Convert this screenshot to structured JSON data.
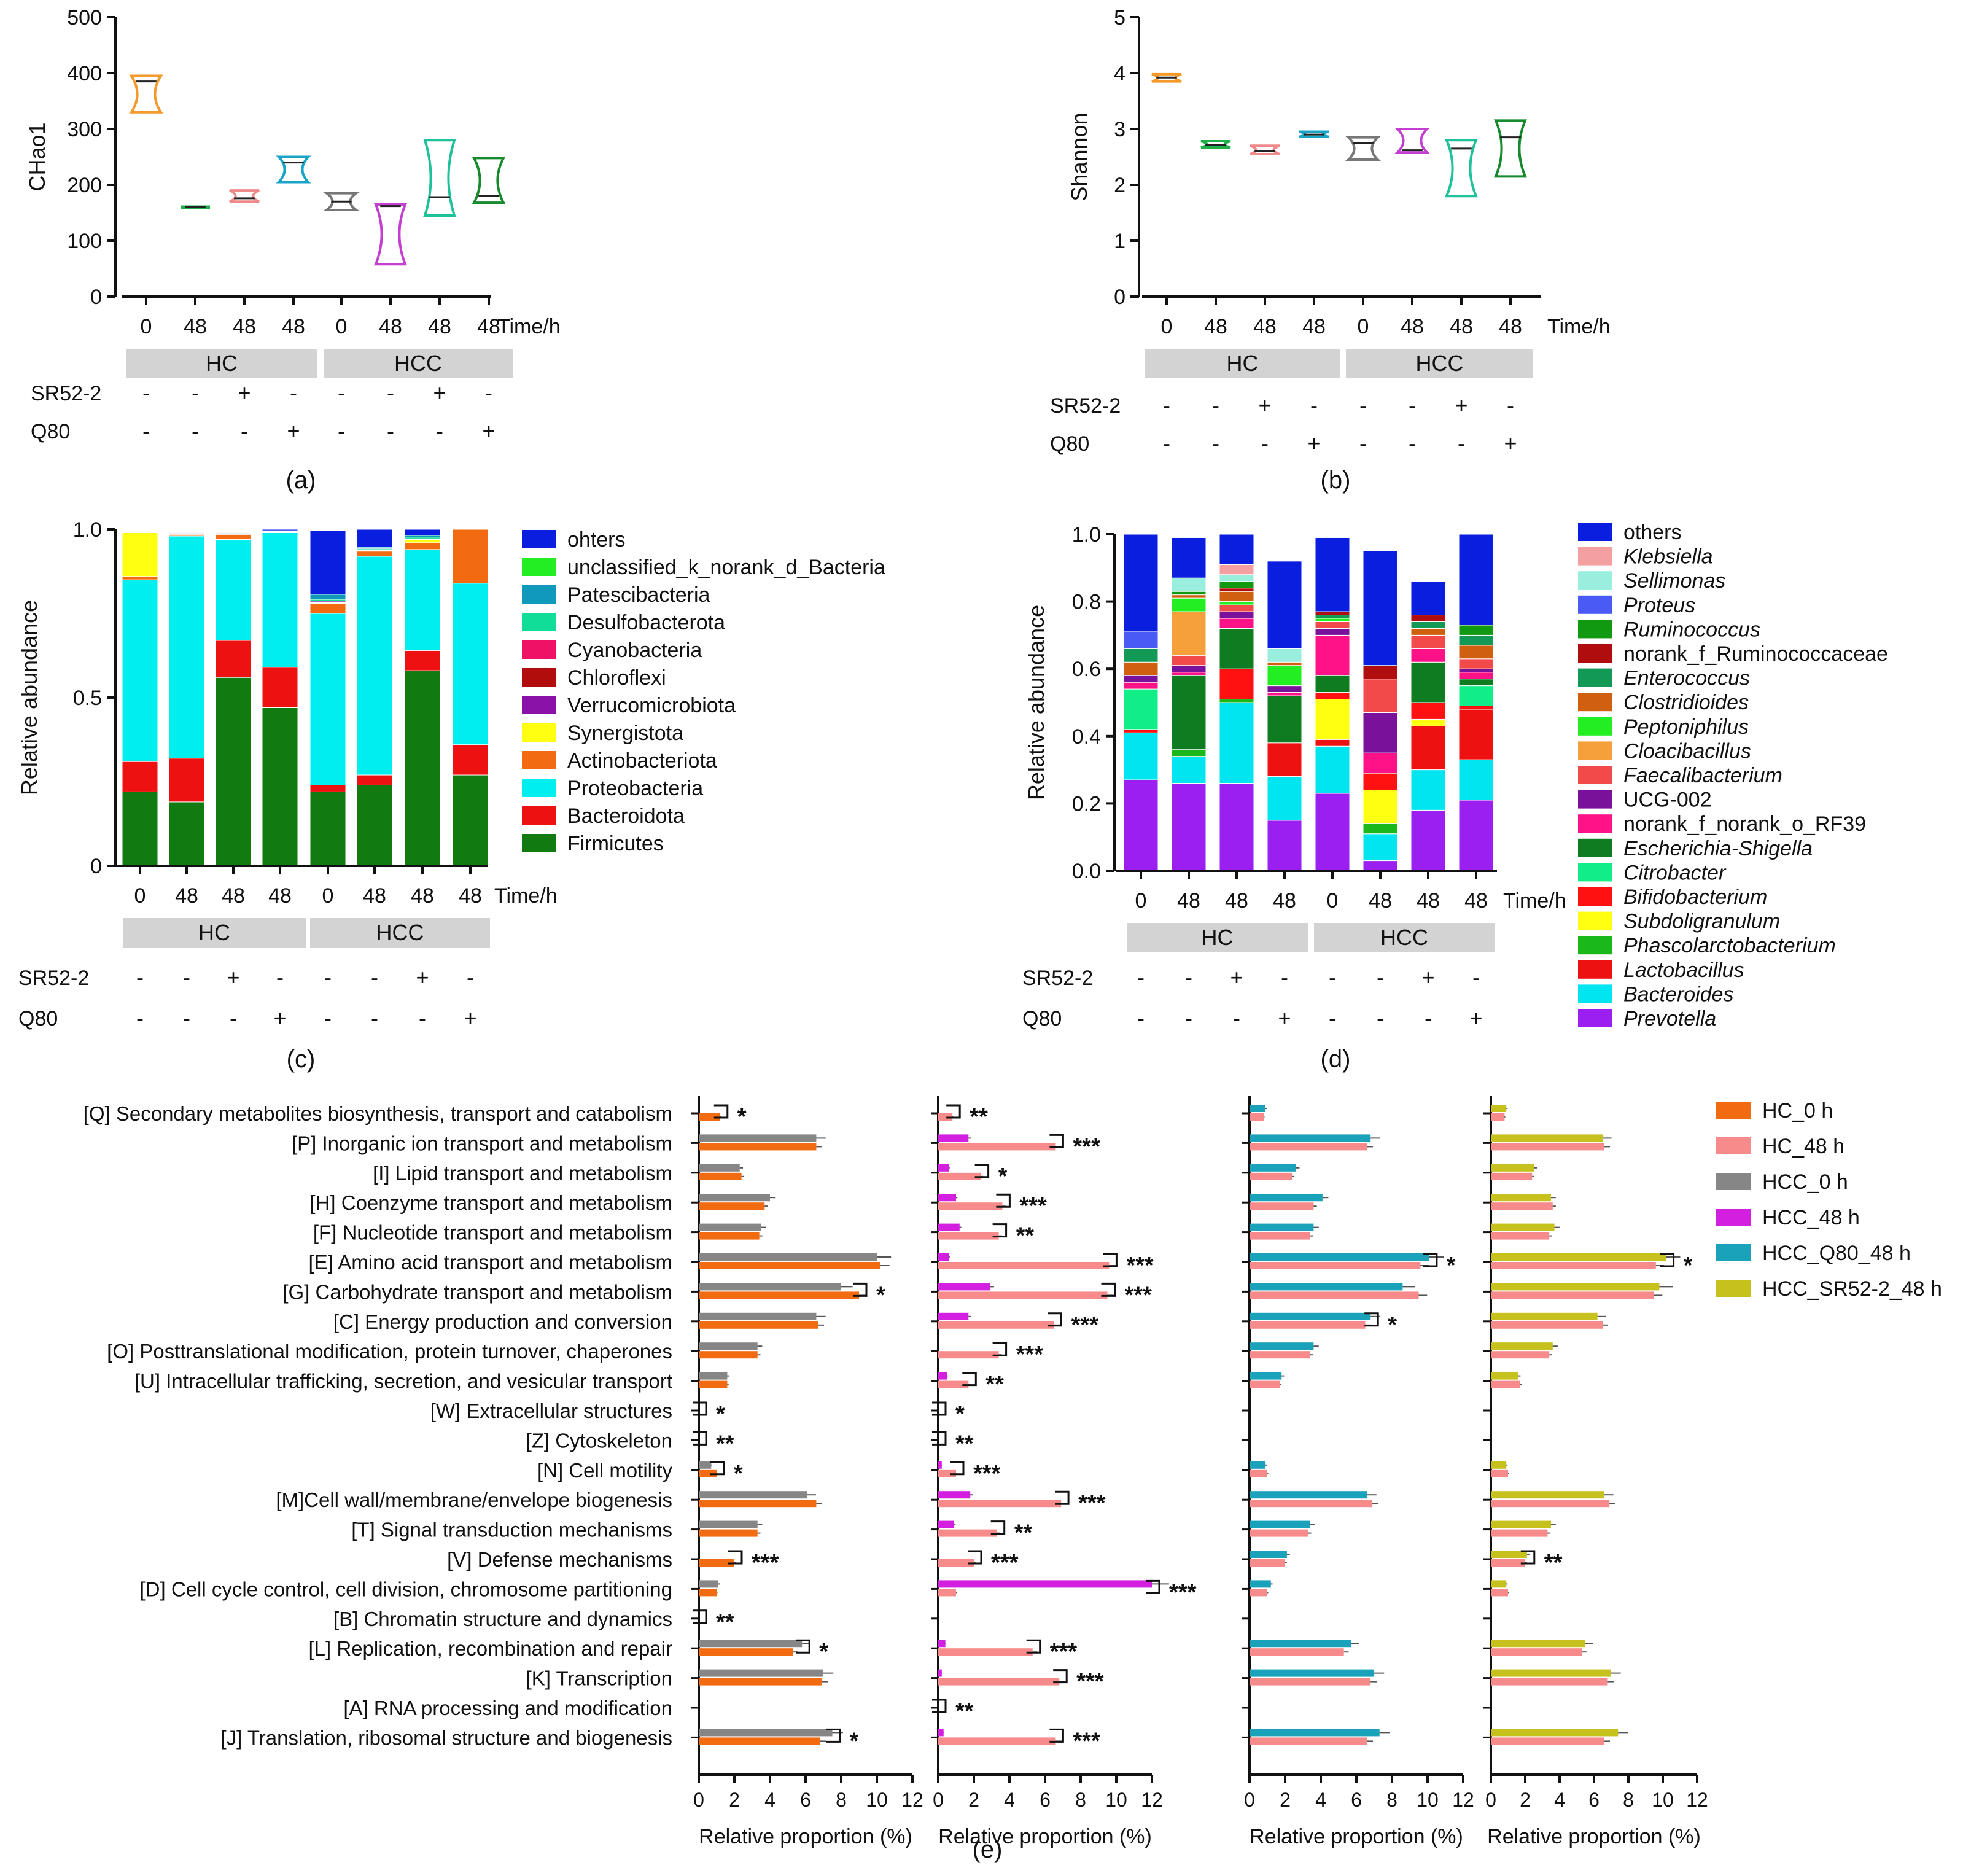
{
  "figure": {
    "time_unit": "Time/h",
    "group_labels": [
      "HC",
      "HCC"
    ],
    "row_labels": [
      "SR52-2",
      "Q80"
    ],
    "times": [
      "0",
      "48",
      "48",
      "48",
      "0",
      "48",
      "48",
      "48"
    ],
    "sr52_marks": [
      "-",
      "-",
      "+",
      "-",
      "-",
      "-",
      "+",
      "-"
    ],
    "q80_marks": [
      "-",
      "-",
      "-",
      "+",
      "-",
      "-",
      "-",
      "+"
    ]
  },
  "panel_labels": [
    "(a)",
    "(b)",
    "(c)",
    "(d)",
    "(e)"
  ],
  "chart_data": [
    {
      "type": "violin",
      "panel": "(a)",
      "ylabel": "CHao1",
      "ylim": [
        0,
        500
      ],
      "yticks": [
        0,
        100,
        200,
        300,
        400,
        500
      ],
      "colors": [
        "#f39a2a",
        "#1fb04a",
        "#f08a8a",
        "#19a4c8",
        "#777777",
        "#c23fd0",
        "#1fc19a",
        "#168a2c"
      ],
      "groups": [
        {
          "min": 330,
          "max": 395,
          "median": 385
        },
        {
          "min": 159,
          "max": 161,
          "median": 160
        },
        {
          "min": 170,
          "max": 190,
          "median": 176
        },
        {
          "min": 205,
          "max": 250,
          "median": 240
        },
        {
          "min": 155,
          "max": 185,
          "median": 170
        },
        {
          "min": 58,
          "max": 165,
          "median": 162
        },
        {
          "min": 145,
          "max": 280,
          "median": 178
        },
        {
          "min": 168,
          "max": 248,
          "median": 180
        }
      ]
    },
    {
      "type": "violin",
      "panel": "(b)",
      "ylabel": "Shannon",
      "ylim": [
        0,
        5
      ],
      "yticks": [
        0,
        1,
        2,
        3,
        4,
        5
      ],
      "colors": [
        "#f39a2a",
        "#1fb04a",
        "#f08a8a",
        "#19a4c8",
        "#777777",
        "#c23fd0",
        "#1fc19a",
        "#168a2c"
      ],
      "groups": [
        {
          "min": 3.85,
          "max": 3.98,
          "median": 3.92
        },
        {
          "min": 2.67,
          "max": 2.78,
          "median": 2.72
        },
        {
          "min": 2.55,
          "max": 2.7,
          "median": 2.6
        },
        {
          "min": 2.86,
          "max": 2.95,
          "median": 2.9
        },
        {
          "min": 2.45,
          "max": 2.85,
          "median": 2.75
        },
        {
          "min": 2.58,
          "max": 3.0,
          "median": 2.62
        },
        {
          "min": 1.8,
          "max": 2.8,
          "median": 2.65
        },
        {
          "min": 2.15,
          "max": 3.15,
          "median": 2.85
        }
      ]
    },
    {
      "type": "stacked-bar",
      "panel": "(c)",
      "ylabel": "Relative abundance",
      "ylim": [
        0,
        1
      ],
      "yticks": [
        "0",
        "0.5",
        "1.0"
      ],
      "ytick_values": [
        0,
        0.5,
        1.0
      ],
      "layers": [
        {
          "name": "Firmicutes",
          "color": "#117a11",
          "values": [
            0.22,
            0.19,
            0.56,
            0.47,
            0.22,
            0.24,
            0.58,
            0.27
          ]
        },
        {
          "name": "Bacteroidota",
          "color": "#ee1111",
          "values": [
            0.09,
            0.13,
            0.11,
            0.12,
            0.02,
            0.03,
            0.06,
            0.09
          ]
        },
        {
          "name": "Proteobacteria",
          "color": "#00eeee",
          "values": [
            0.54,
            0.66,
            0.3,
            0.4,
            0.51,
            0.65,
            0.3,
            0.48
          ]
        },
        {
          "name": "Actinobacteriota",
          "color": "#f26b10",
          "values": [
            0.01,
            0.005,
            0.015,
            0.002,
            0.03,
            0.015,
            0.02,
            0.16
          ]
        },
        {
          "name": "Synergistota",
          "color": "#ffff11",
          "values": [
            0.13,
            0.003,
            0.001,
            0.001,
            0.002,
            0.002,
            0.01,
            0.0
          ]
        },
        {
          "name": "Verrucomicrobiota",
          "color": "#8b12a8",
          "values": [
            0.002,
            0.0,
            0.0,
            0.0,
            0.005,
            0.0,
            0.002,
            0.0
          ]
        },
        {
          "name": "Chloroflexi",
          "color": "#b20d0d",
          "values": [
            0.0,
            0.0,
            0.0,
            0.0,
            0.0,
            0.0,
            0.0,
            0.0
          ]
        },
        {
          "name": "Cyanobacteria",
          "color": "#ee1166",
          "values": [
            0.0,
            0.0,
            0.0,
            0.0,
            0.0,
            0.0,
            0.0,
            0.0
          ]
        },
        {
          "name": "Desulfobacterota",
          "color": "#11dd99",
          "values": [
            0.001,
            0.0,
            0.002,
            0.001,
            0.005,
            0.005,
            0.005,
            0.0
          ]
        },
        {
          "name": "Patescibacteria",
          "color": "#1199bb",
          "values": [
            0.0,
            0.0,
            0.0,
            0.002,
            0.015,
            0.005,
            0.005,
            0.0
          ]
        },
        {
          "name": "unclassified_k_norank_d_Bacteria",
          "color": "#22ee22",
          "values": [
            0.001,
            0.0,
            0.0,
            0.0,
            0.0,
            0.0,
            0.0,
            0.0
          ]
        },
        {
          "name": "ohters",
          "color": "#0a1ee0",
          "values": [
            0.003,
            0.002,
            0.002,
            0.005,
            0.19,
            0.055,
            0.02,
            0.0
          ]
        }
      ]
    },
    {
      "type": "stacked-bar",
      "panel": "(d)",
      "ylabel": "Relative abundance",
      "ylim": [
        0,
        1
      ],
      "yticks": [
        "0.0",
        "0.2",
        "0.4",
        "0.6",
        "0.8",
        "1.0"
      ],
      "ytick_values": [
        0,
        0.2,
        0.4,
        0.6,
        0.8,
        1.0
      ],
      "layers": [
        {
          "name": "Prevotella",
          "color": "#9b1ff0",
          "italic": true,
          "values": [
            0.27,
            0.26,
            0.26,
            0.15,
            0.23,
            0.03,
            0.18,
            0.21
          ]
        },
        {
          "name": "Bacteroides",
          "color": "#00e5f0",
          "italic": true,
          "values": [
            0.14,
            0.08,
            0.24,
            0.13,
            0.14,
            0.08,
            0.12,
            0.12
          ]
        },
        {
          "name": "Lactobacillus",
          "color": "#ee1111",
          "italic": true,
          "values": [
            0.0,
            0.0,
            0.0,
            0.1,
            0.02,
            0.0,
            0.13,
            0.15
          ]
        },
        {
          "name": "Phascolarctobacterium",
          "color": "#1ab81a",
          "italic": true,
          "values": [
            0.0,
            0.02,
            0.01,
            0.0,
            0.0,
            0.03,
            0.0,
            0.0
          ]
        },
        {
          "name": "Subdoligranulum",
          "color": "#ffff11",
          "italic": true,
          "values": [
            0.0,
            0.0,
            0.0,
            0.0,
            0.12,
            0.1,
            0.02,
            0.0
          ]
        },
        {
          "name": "Bifidobacterium",
          "color": "#ff1111",
          "italic": true,
          "values": [
            0.01,
            0.0,
            0.09,
            0.0,
            0.02,
            0.05,
            0.05,
            0.01
          ]
        },
        {
          "name": "Citrobacter",
          "color": "#11ee88",
          "italic": true,
          "values": [
            0.12,
            0.0,
            0.0,
            0.0,
            0.0,
            0.0,
            0.0,
            0.06
          ]
        },
        {
          "name": "Escherichia-Shigella",
          "color": "#107c22",
          "italic": true,
          "values": [
            0.0,
            0.22,
            0.12,
            0.14,
            0.05,
            0.0,
            0.12,
            0.02
          ]
        },
        {
          "name": "norank_f_norank_o_RF39",
          "color": "#ff1288",
          "values": [
            0.02,
            0.01,
            0.03,
            0.01,
            0.12,
            0.06,
            0.04,
            0.02
          ]
        },
        {
          "name": "UCG-002",
          "color": "#7a119a",
          "values": [
            0.02,
            0.02,
            0.02,
            0.02,
            0.02,
            0.12,
            0.0,
            0.01
          ]
        },
        {
          "name": "Faecalibacterium",
          "color": "#f24a4a",
          "italic": true,
          "values": [
            0.0,
            0.03,
            0.02,
            0.0,
            0.02,
            0.1,
            0.04,
            0.03
          ]
        },
        {
          "name": "Cloacibacillus",
          "color": "#f5a03a",
          "italic": true,
          "values": [
            0.0,
            0.13,
            0.0,
            0.0,
            0.0,
            0.0,
            0.0,
            0.0
          ]
        },
        {
          "name": "Peptoniphilus",
          "color": "#22ee22",
          "italic": true,
          "values": [
            0.0,
            0.04,
            0.01,
            0.06,
            0.01,
            0.0,
            0.0,
            0.0
          ]
        },
        {
          "name": "Clostridioides",
          "color": "#d06010",
          "italic": true,
          "values": [
            0.04,
            0.01,
            0.03,
            0.01,
            0.0,
            0.0,
            0.02,
            0.04
          ]
        },
        {
          "name": "Enterococcus",
          "color": "#119955",
          "italic": true,
          "values": [
            0.04,
            0.0,
            0.0,
            0.0,
            0.01,
            0.0,
            0.02,
            0.03
          ]
        },
        {
          "name": "norank_f_Ruminococcaceae",
          "color": "#b00e0e",
          "values": [
            0.0,
            0.0,
            0.01,
            0.0,
            0.01,
            0.04,
            0.02,
            0.0
          ]
        },
        {
          "name": "Ruminococcus",
          "color": "#119911",
          "italic": true,
          "values": [
            0.0,
            0.01,
            0.02,
            0.0,
            0.0,
            0.0,
            0.0,
            0.03
          ]
        },
        {
          "name": "Proteus",
          "color": "#4a5af5",
          "italic": true,
          "values": [
            0.05,
            0.0,
            0.0,
            0.0,
            0.0,
            0.0,
            0.0,
            0.0
          ]
        },
        {
          "name": "Sellimonas",
          "color": "#99eedd",
          "italic": true,
          "values": [
            0.0,
            0.04,
            0.02,
            0.04,
            0.0,
            0.0,
            0.0,
            0.0
          ]
        },
        {
          "name": "Klebsiella",
          "color": "#f5a0a0",
          "italic": true,
          "values": [
            0.0,
            0.0,
            0.03,
            0.0,
            0.0,
            0.0,
            0.0,
            0.0
          ]
        },
        {
          "name": "others",
          "color": "#0a1ee0",
          "values": [
            0.31,
            0.12,
            0.09,
            0.26,
            0.22,
            0.34,
            0.1,
            0.28
          ]
        }
      ]
    },
    {
      "type": "horizontal-bar",
      "panel": "(e)",
      "xlabel": "Relative proportion (%)",
      "xlim": [
        0,
        12
      ],
      "xticks": [
        0,
        2,
        4,
        6,
        8,
        10,
        12
      ],
      "categories": [
        "[Q] Secondary metabolites biosynthesis, transport and catabolism",
        "[P] Inorganic ion transport and metabolism",
        "[I] Lipid transport and metabolism",
        "[H] Coenzyme transport and metabolism",
        "[F] Nucleotide transport and metabolism",
        "[E] Amino acid transport and metabolism",
        "[G] Carbohydrate transport and metabolism",
        "[C] Energy production and conversion",
        "[O] Posttranslational modification, protein turnover, chaperones",
        "[U] Intracellular trafficking, secretion, and vesicular transport",
        "[W] Extracellular structures",
        "[Z] Cytoskeleton",
        "[N] Cell motility",
        "[M]Cell wall/membrane/envelope biogenesis",
        "[T] Signal transduction mechanisms",
        "[V] Defense mechanisms",
        "[D] Cell cycle control, cell division, chromosome partitioning",
        "[B] Chromatin structure and dynamics",
        "[L] Replication, recombination and repair",
        "[K] Transcription",
        "[A] RNA processing and modification",
        "[J] Translation, ribosomal structure and biogenesis"
      ],
      "series": [
        {
          "name": "HC_0 h",
          "color": "#f26b10",
          "values": [
            1.2,
            6.6,
            2.4,
            3.7,
            3.4,
            10.2,
            9.0,
            6.7,
            3.3,
            1.6,
            0.0,
            0.0,
            1.0,
            6.6,
            3.3,
            2.0,
            1.0,
            0.0,
            5.3,
            6.9,
            0.0,
            6.8
          ]
        },
        {
          "name": "HC_48 h",
          "color": "#f78b8b",
          "values": [
            0.8,
            6.6,
            2.4,
            3.6,
            3.4,
            9.6,
            9.5,
            6.5,
            3.4,
            1.7,
            0.0,
            0.0,
            1.0,
            6.9,
            3.3,
            2.0,
            1.0,
            0.0,
            5.3,
            6.8,
            0.0,
            6.6
          ]
        },
        {
          "name": "HCC_0 h",
          "color": "#868686",
          "values": [
            0.0,
            6.6,
            2.3,
            4.0,
            3.5,
            10.0,
            8.0,
            6.6,
            3.3,
            1.6,
            0.0,
            0.0,
            0.7,
            6.1,
            3.3,
            0.0,
            1.1,
            0.0,
            5.8,
            7.0,
            0.0,
            7.5
          ]
        },
        {
          "name": "HCC_48 h",
          "color": "#d21fe0",
          "values": [
            0.0,
            1.7,
            0.6,
            1.0,
            1.2,
            0.6,
            2.9,
            1.7,
            0.0,
            0.5,
            0.0,
            0.0,
            0.2,
            1.8,
            0.9,
            0.0,
            12.0,
            0.0,
            0.4,
            0.2,
            0.0,
            0.3
          ]
        },
        {
          "name": "HCC_Q80_48 h",
          "color": "#1aa2ba",
          "values": [
            0.9,
            6.8,
            2.6,
            4.1,
            3.6,
            10.1,
            8.6,
            6.8,
            3.6,
            1.8,
            0.0,
            0.0,
            0.9,
            6.6,
            3.4,
            2.1,
            1.2,
            0.0,
            5.7,
            7.0,
            0.0,
            7.3
          ]
        },
        {
          "name": "HCC_SR52-2_48 h",
          "color": "#c6c11c",
          "values": [
            0.9,
            6.5,
            2.5,
            3.5,
            3.7,
            10.2,
            9.8,
            6.2,
            3.6,
            1.6,
            0.0,
            0.0,
            0.9,
            6.6,
            3.5,
            2.1,
            0.9,
            0.0,
            5.5,
            7.0,
            0.0,
            7.4
          ]
        }
      ],
      "subplots": [
        {
          "series": [
            "HCC_0 h",
            "HC_0 h"
          ],
          "sig": [
            "*",
            "",
            "",
            "",
            "",
            "",
            "*",
            "",
            "",
            "",
            "*",
            "**",
            "*",
            "",
            "",
            "***",
            "",
            "**",
            "*",
            "",
            "",
            "*"
          ]
        },
        {
          "series": [
            "HCC_48 h",
            "HC_48 h"
          ],
          "sig": [
            "**",
            "***",
            "*",
            "***",
            "**",
            "***",
            "***",
            "***",
            "***",
            "**",
            "*",
            "**",
            "***",
            "***",
            "**",
            "***",
            "***",
            "",
            "***",
            "***",
            "**",
            "***"
          ]
        },
        {
          "series": [
            "HCC_Q80_48 h",
            "HC_48 h"
          ],
          "sig": [
            "",
            "",
            "",
            "",
            "",
            "*",
            "",
            "*",
            "",
            "",
            "",
            "",
            "",
            "",
            "",
            "",
            "",
            "",
            "",
            "",
            "",
            ""
          ]
        },
        {
          "series": [
            "HCC_SR52-2_48 h",
            "HC_48 h"
          ],
          "sig": [
            "",
            "",
            "",
            "",
            "",
            "*",
            "",
            "",
            "",
            "",
            "",
            "",
            "",
            "",
            "",
            "**",
            "",
            "",
            "",
            "",
            "",
            ""
          ]
        }
      ]
    }
  ]
}
